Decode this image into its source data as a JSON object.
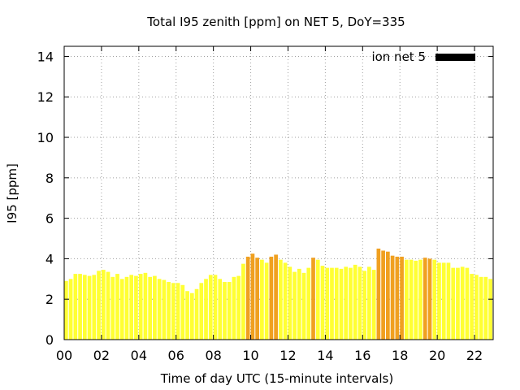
{
  "chart_data": {
    "type": "bar",
    "title": "Total I95 zenith [ppm] on NET 5, DoY=335",
    "xlabel": "Time of day UTC (15-minute intervals)",
    "ylabel": "I95 [ppm]",
    "legend": {
      "label": "ion net 5",
      "position": "top-right",
      "color": "#000000"
    },
    "grid": true,
    "xlim": [
      0,
      23
    ],
    "ylim": [
      0,
      14.5
    ],
    "x_ticks": [
      "00",
      "02",
      "04",
      "06",
      "08",
      "10",
      "12",
      "14",
      "16",
      "18",
      "20",
      "22"
    ],
    "x_tick_hours": [
      0,
      2,
      4,
      6,
      8,
      10,
      12,
      14,
      16,
      18,
      20,
      22
    ],
    "y_ticks": [
      0,
      2,
      4,
      6,
      8,
      10,
      12,
      14
    ],
    "bar_interval_hours": 0.25,
    "colors": {
      "normal": "#ffff33",
      "elevated": "#f0a020"
    },
    "elevated_threshold": 4.0,
    "values": [
      2.9,
      3.0,
      3.25,
      3.25,
      3.2,
      3.15,
      3.2,
      3.4,
      3.45,
      3.35,
      3.1,
      3.25,
      3.0,
      3.1,
      3.2,
      3.15,
      3.25,
      3.3,
      3.1,
      3.15,
      3.0,
      2.95,
      2.85,
      2.8,
      2.8,
      2.7,
      2.4,
      2.3,
      2.5,
      2.8,
      3.0,
      3.2,
      3.2,
      3.0,
      2.85,
      2.85,
      3.1,
      3.15,
      3.75,
      4.1,
      4.25,
      4.05,
      3.95,
      3.8,
      4.1,
      4.2,
      3.95,
      3.8,
      3.6,
      3.35,
      3.5,
      3.3,
      3.55,
      4.05,
      3.95,
      3.65,
      3.55,
      3.55,
      3.55,
      3.5,
      3.6,
      3.55,
      3.7,
      3.6,
      3.4,
      3.6,
      3.45,
      4.5,
      4.4,
      4.35,
      4.15,
      4.1,
      4.1,
      3.95,
      3.95,
      3.9,
      3.95,
      4.05,
      4.0,
      3.95,
      3.8,
      3.8,
      3.8,
      3.55,
      3.55,
      3.6,
      3.55,
      3.25,
      3.2,
      3.1,
      3.1,
      3.0
    ]
  }
}
